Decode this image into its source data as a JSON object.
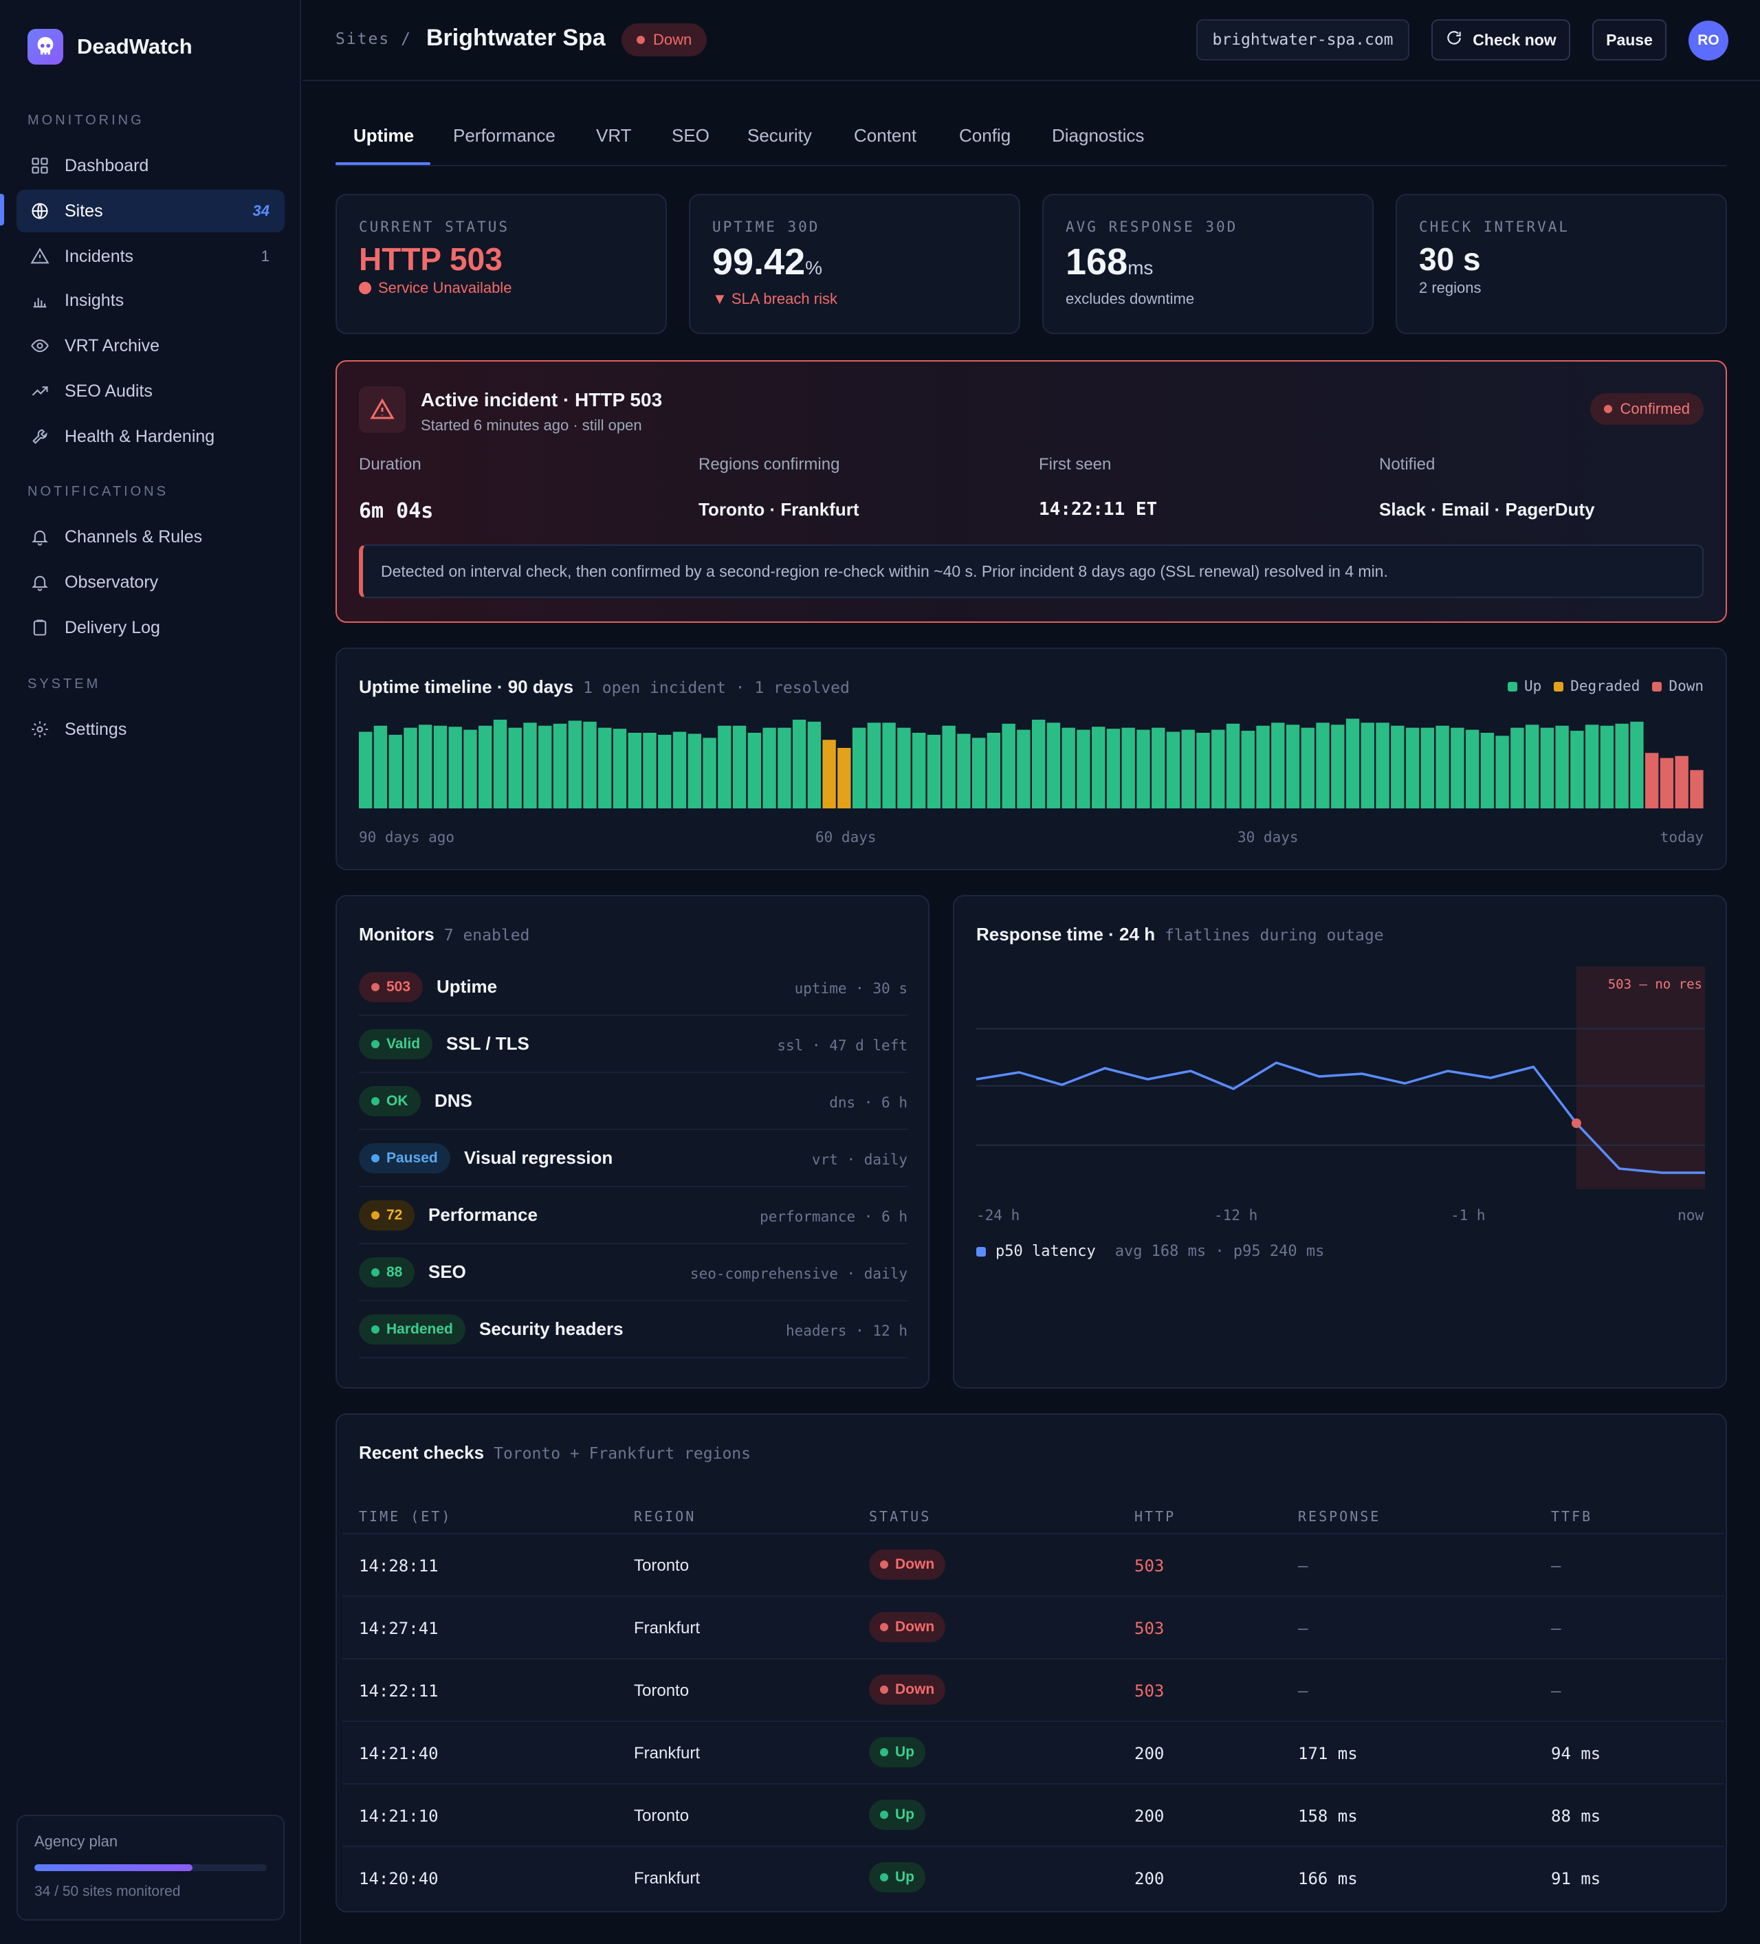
{
  "brand": {
    "name": "DeadWatch"
  },
  "sidebar": {
    "sections": [
      {
        "title": "MONITORING"
      },
      {
        "title": "NOTIFICATIONS"
      },
      {
        "title": "SYSTEM"
      }
    ],
    "items": [
      {
        "label": "Dashboard",
        "icon": "grid-icon"
      },
      {
        "label": "Sites",
        "icon": "globe-icon",
        "count": "34",
        "active": true
      },
      {
        "label": "Incidents",
        "icon": "warning-icon",
        "count": "1"
      },
      {
        "label": "Insights",
        "icon": "bar-chart-icon"
      },
      {
        "label": "VRT Archive",
        "icon": "eye-icon"
      },
      {
        "label": "SEO Audits",
        "icon": "trend-icon"
      },
      {
        "label": "Health & Hardening",
        "icon": "wrench-icon"
      },
      {
        "label": "Channels & Rules",
        "icon": "bell-icon"
      },
      {
        "label": "Observatory",
        "icon": "bell-icon"
      },
      {
        "label": "Delivery Log",
        "icon": "clipboard-icon"
      },
      {
        "label": "Settings",
        "icon": "gear-icon"
      }
    ],
    "plan": {
      "title": "Agency plan",
      "caption": "34 / 50 sites monitored",
      "used": 34,
      "total": 50
    }
  },
  "header": {
    "breadcrumb": "Sites /",
    "title": "Brightwater Spa",
    "status": "Down",
    "url": "brightwater-spa.com",
    "check_now": "Check now",
    "pause": "Pause",
    "avatar": "RO"
  },
  "tabs": [
    "Uptime",
    "Performance",
    "VRT",
    "SEO",
    "Security",
    "Content",
    "Config",
    "Diagnostics"
  ],
  "stats": [
    {
      "label": "CURRENT STATUS",
      "value": "HTTP 503",
      "unit": "",
      "sub": "Service Unavailable"
    },
    {
      "label": "UPTIME 30D",
      "value": "99.42",
      "unit": "%",
      "sub": "▼ SLA breach risk"
    },
    {
      "label": "AVG RESPONSE 30D",
      "value": "168",
      "unit": "ms",
      "sub": "excludes downtime"
    },
    {
      "label": "CHECK INTERVAL",
      "value": "30 s",
      "unit": "",
      "sub": "2 regions"
    }
  ],
  "incident": {
    "title": "Active incident · HTTP 503",
    "subtitle": "Started 6 minutes ago · still open",
    "badge": "Confirmed",
    "columns": [
      {
        "label": "Duration",
        "value": "6m 04s"
      },
      {
        "label": "Regions confirming",
        "value": "Toronto · Frankfurt"
      },
      {
        "label": "First seen",
        "value": "14:22:11 ET"
      },
      {
        "label": "Notified",
        "value": "Slack · Email · PagerDuty"
      }
    ],
    "note": "Detected on interval check, then confirmed by a second-region re-check within ~40 s. Prior incident 8 days ago (SSL renewal) resolved in 4 min."
  },
  "colors": {
    "up": "#2bbd86",
    "degraded": "#e3a21a",
    "down": "#e06565",
    "accent": "#5b7cff",
    "latency": "#5b8cff"
  },
  "chart_data": [
    {
      "type": "bar",
      "title": "Uptime timeline · 90 days",
      "subtitle": "1 open incident · 1 resolved",
      "legend": [
        "Up",
        "Degraded",
        "Down"
      ],
      "legend_position": "top-right",
      "x_labels": [
        "90 days ago",
        "60 days",
        "30 days",
        "today"
      ],
      "days": 90,
      "values": [
        76,
        82,
        73,
        80,
        83,
        82,
        81,
        78,
        82,
        88,
        80,
        85,
        82,
        84,
        87,
        86,
        80,
        79,
        75,
        75,
        73,
        76,
        74,
        70,
        82,
        82,
        75,
        80,
        80,
        88,
        86,
        68,
        60,
        80,
        85,
        85,
        80,
        75,
        73,
        82,
        74,
        70,
        75,
        84,
        78,
        88,
        85,
        80,
        78,
        81,
        79,
        80,
        78,
        80,
        76,
        78,
        75,
        78,
        84,
        77,
        82,
        85,
        83,
        80,
        85,
        83,
        89,
        85,
        85,
        82,
        80,
        80,
        82,
        80,
        78,
        75,
        72,
        80,
        83,
        80,
        82,
        77,
        83,
        82,
        84,
        86,
        55,
        50,
        52,
        38
      ],
      "status": [
        "up",
        "up",
        "up",
        "up",
        "up",
        "up",
        "up",
        "up",
        "up",
        "up",
        "up",
        "up",
        "up",
        "up",
        "up",
        "up",
        "up",
        "up",
        "up",
        "up",
        "up",
        "up",
        "up",
        "up",
        "up",
        "up",
        "up",
        "up",
        "up",
        "up",
        "up",
        "degraded",
        "degraded",
        "up",
        "up",
        "up",
        "up",
        "up",
        "up",
        "up",
        "up",
        "up",
        "up",
        "up",
        "up",
        "up",
        "up",
        "up",
        "up",
        "up",
        "up",
        "up",
        "up",
        "up",
        "up",
        "up",
        "up",
        "up",
        "up",
        "up",
        "up",
        "up",
        "up",
        "up",
        "up",
        "up",
        "up",
        "up",
        "up",
        "up",
        "up",
        "up",
        "up",
        "up",
        "up",
        "up",
        "up",
        "up",
        "up",
        "up",
        "up",
        "up",
        "up",
        "up",
        "up",
        "up",
        "down",
        "down",
        "down",
        "down"
      ]
    },
    {
      "type": "line",
      "title": "Response time · 24 h",
      "subtitle": "flatlines during outage",
      "x_labels": [
        "-24 h",
        "-12 h",
        "-1 h",
        "now"
      ],
      "series": [
        {
          "name": "p50 latency",
          "values": [
            180,
            185,
            176,
            188,
            180,
            186,
            173,
            192,
            182,
            184,
            177,
            186,
            181,
            189,
            148,
            115,
            112,
            112
          ]
        }
      ],
      "y_range": [
        100,
        260
      ],
      "outage_label": "503 — no res",
      "outage_from_index": 14,
      "summary": "avg 168 ms · p95 240 ms"
    }
  ],
  "monitors": {
    "title": "Monitors",
    "subtitle": "7 enabled",
    "rows": [
      {
        "badge": "503",
        "kind": "down",
        "name": "Uptime",
        "meta": "uptime · 30 s"
      },
      {
        "badge": "Valid",
        "kind": "ok",
        "name": "SSL / TLS",
        "meta": "ssl · 47 d left"
      },
      {
        "badge": "OK",
        "kind": "ok",
        "name": "DNS",
        "meta": "dns · 6 h"
      },
      {
        "badge": "Paused",
        "kind": "paused",
        "name": "Visual regression",
        "meta": "vrt · daily"
      },
      {
        "badge": "72",
        "kind": "warn",
        "name": "Performance",
        "meta": "performance · 6 h"
      },
      {
        "badge": "88",
        "kind": "ok",
        "name": "SEO",
        "meta": "seo-comprehensive · daily"
      },
      {
        "badge": "Hardened",
        "kind": "ok",
        "name": "Security headers",
        "meta": "headers · 12 h"
      }
    ]
  },
  "recent_checks": {
    "title": "Recent checks",
    "subtitle": "Toronto + Frankfurt regions",
    "columns": [
      "TIME (ET)",
      "REGION",
      "STATUS",
      "HTTP",
      "RESPONSE",
      "TTFB"
    ],
    "rows": [
      {
        "time": "14:28:11",
        "region": "Toronto",
        "status": "Down",
        "http": "503",
        "response": "—",
        "ttfb": "—"
      },
      {
        "time": "14:27:41",
        "region": "Frankfurt",
        "status": "Down",
        "http": "503",
        "response": "—",
        "ttfb": "—"
      },
      {
        "time": "14:22:11",
        "region": "Toronto",
        "status": "Down",
        "http": "503",
        "response": "—",
        "ttfb": "—"
      },
      {
        "time": "14:21:40",
        "region": "Frankfurt",
        "status": "Up",
        "http": "200",
        "response": "171 ms",
        "ttfb": "94 ms"
      },
      {
        "time": "14:21:10",
        "region": "Toronto",
        "status": "Up",
        "http": "200",
        "response": "158 ms",
        "ttfb": "88 ms"
      },
      {
        "time": "14:20:40",
        "region": "Frankfurt",
        "status": "Up",
        "http": "200",
        "response": "166 ms",
        "ttfb": "91 ms"
      }
    ]
  }
}
